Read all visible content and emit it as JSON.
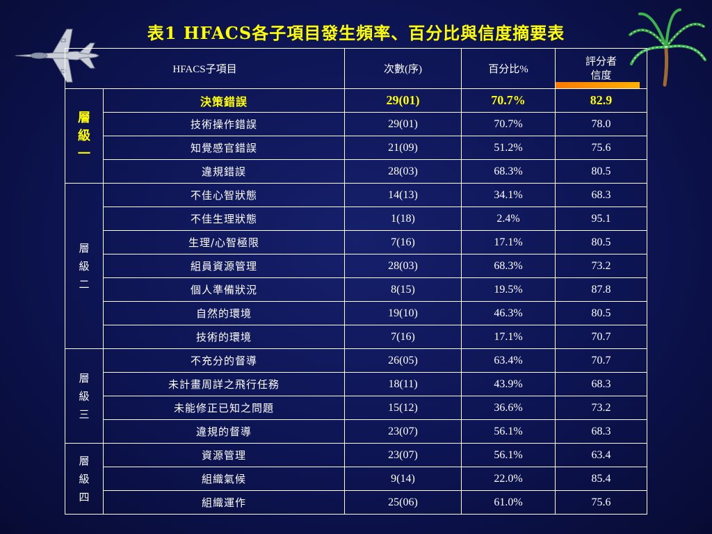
{
  "title": "表1 HFACS各子項目發生頻率、百分比與信度摘要表",
  "headers": {
    "subitem": "HFACS子項目",
    "count": "次數(序)",
    "percent": "百分比%",
    "rater_line1": "評分者",
    "rater_line2": "信度"
  },
  "levels": [
    {
      "label": [
        "層",
        "級",
        "一"
      ]
    },
    {
      "label": [
        "層",
        "級",
        "二"
      ]
    },
    {
      "label": [
        "層",
        "級",
        "三"
      ]
    },
    {
      "label": [
        "層",
        "級",
        "四"
      ]
    }
  ],
  "rows": [
    {
      "name": "決策錯誤",
      "count": "29(01)",
      "percent": "70.7%",
      "reliability": "82.9"
    },
    {
      "name": "技術操作錯誤",
      "count": "29(01)",
      "percent": "70.7%",
      "reliability": "78.0"
    },
    {
      "name": "知覺感官錯誤",
      "count": "21(09)",
      "percent": "51.2%",
      "reliability": "75.6"
    },
    {
      "name": "違規錯誤",
      "count": "28(03)",
      "percent": "68.3%",
      "reliability": "80.5"
    },
    {
      "name": "不佳心智狀態",
      "count": "14(13)",
      "percent": "34.1%",
      "reliability": "68.3"
    },
    {
      "name": "不佳生理狀態",
      "count": "1(18)",
      "percent": "2.4%",
      "reliability": "95.1"
    },
    {
      "name": "生理/心智極限",
      "count": "7(16)",
      "percent": "17.1%",
      "reliability": "80.5"
    },
    {
      "name": "組員資源管理",
      "count": "28(03)",
      "percent": "68.3%",
      "reliability": "73.2"
    },
    {
      "name": "個人準備狀況",
      "count": "8(15)",
      "percent": "19.5%",
      "reliability": "87.8"
    },
    {
      "name": "自然的環境",
      "count": "19(10)",
      "percent": "46.3%",
      "reliability": "80.5"
    },
    {
      "name": "技術的環境",
      "count": "7(16)",
      "percent": "17.1%",
      "reliability": "70.7"
    },
    {
      "name": "不充分的督導",
      "count": "26(05)",
      "percent": "63.4%",
      "reliability": "70.7"
    },
    {
      "name": "未計畫周詳之飛行任務",
      "count": "18(11)",
      "percent": "43.9%",
      "reliability": "68.3"
    },
    {
      "name": "未能修正已知之問題",
      "count": "15(12)",
      "percent": "36.6%",
      "reliability": "73.2"
    },
    {
      "name": "違規的督導",
      "count": "23(07)",
      "percent": "56.1%",
      "reliability": "68.3"
    },
    {
      "name": "資源管理",
      "count": "23(07)",
      "percent": "56.1%",
      "reliability": "63.4"
    },
    {
      "name": "組織氣候",
      "count": "9(14)",
      "percent": "22.0%",
      "reliability": "85.4"
    },
    {
      "name": "組織運作",
      "count": "25(06)",
      "percent": "61.0%",
      "reliability": "75.6"
    }
  ],
  "colors": {
    "background": "#0d1452",
    "title": "#ffff00",
    "highlight": "#ffff00",
    "accent_bar": "#ff8c00"
  },
  "icons": [
    "fighter-jet-icon",
    "palm-tree-icon"
  ]
}
